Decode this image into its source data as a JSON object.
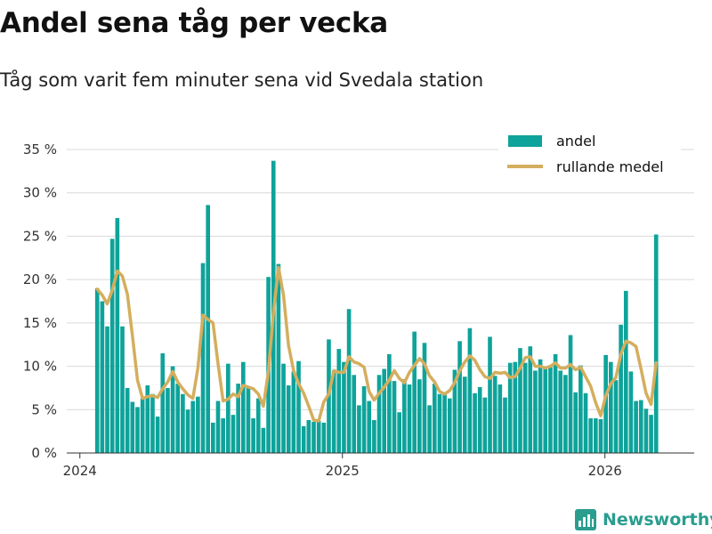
{
  "title": "Andel sena tåg per vecka",
  "subtitle": "Tåg som varit fem minuter sena vid Svedala station",
  "brand": "Newsworthy",
  "colors": {
    "bar": "#0ea39a",
    "line": "#d4ae5e",
    "grid": "#d9d9d9",
    "brand": "#2a9d8f"
  },
  "chart_data": {
    "type": "bar",
    "title": "Andel sena tåg per vecka",
    "subtitle": "Tåg som varit fem minuter sena vid Svedala station",
    "xlabel": "",
    "ylabel": "",
    "ylim": [
      0,
      35
    ],
    "y_ticks": [
      0,
      5,
      10,
      15,
      20,
      25,
      30,
      35
    ],
    "y_tick_labels": [
      "0 %",
      "5 %",
      "10 %",
      "15 %",
      "20 %",
      "25 %",
      "30 %",
      "35 %"
    ],
    "x_ticks": [
      2024,
      2025,
      2026
    ],
    "x_tick_labels": [
      "2024",
      "2025",
      "2026"
    ],
    "x_range": [
      2023.95,
      2026.34
    ],
    "start": 2024.066,
    "step": 0.01918,
    "grid": true,
    "legend_position": "top-right",
    "series": [
      {
        "name": "andel",
        "type": "bar",
        "values": [
          19.0,
          17.5,
          14.6,
          24.7,
          27.1,
          14.6,
          7.5,
          5.9,
          5.3,
          6.3,
          7.8,
          6.8,
          4.2,
          11.5,
          7.5,
          10.0,
          8.0,
          6.8,
          5.0,
          6.0,
          6.5,
          21.9,
          28.6,
          3.5,
          6.0,
          4.0,
          10.3,
          4.4,
          8.0,
          10.5,
          7.5,
          4.0,
          6.3,
          2.9,
          20.3,
          33.7,
          21.8,
          10.3,
          7.8,
          9.4,
          10.6,
          3.1,
          3.8,
          3.6,
          3.7,
          3.5,
          13.1,
          9.5,
          12.0,
          10.5,
          16.6,
          9.0,
          5.5,
          7.7,
          6.0,
          3.8,
          9.0,
          9.7,
          11.4,
          8.3,
          4.7,
          8.5,
          7.9,
          14.0,
          8.5,
          12.7,
          5.5,
          8.0,
          6.8,
          6.8,
          6.3,
          9.6,
          12.9,
          8.8,
          14.4,
          6.9,
          7.6,
          6.4,
          13.4,
          8.9,
          7.9,
          6.4,
          10.4,
          10.5,
          12.1,
          10.4,
          12.3,
          9.5,
          10.8,
          10.0,
          9.9,
          11.4,
          9.5,
          9.0,
          13.6,
          7.0,
          10.1,
          6.9,
          4.0,
          4.0,
          3.9,
          11.3,
          10.5,
          8.4,
          14.8,
          18.7,
          9.4,
          6.0,
          6.1,
          5.1,
          4.4,
          25.2
        ]
      },
      {
        "name": "rullande medel",
        "type": "line",
        "values": [
          18.9,
          18.2,
          17.2,
          18.8,
          21.0,
          20.4,
          18.3,
          13.5,
          8.4,
          6.3,
          6.5,
          6.6,
          6.4,
          7.4,
          8.2,
          9.4,
          8.2,
          7.4,
          6.7,
          6.3,
          9.8,
          15.9,
          15.4,
          15.0,
          10.3,
          6.0,
          6.2,
          6.8,
          6.5,
          7.8,
          7.6,
          7.4,
          6.8,
          5.4,
          9.4,
          16.2,
          21.4,
          18.2,
          12.4,
          9.5,
          8.0,
          6.9,
          5.4,
          3.8,
          3.7,
          5.9,
          6.8,
          9.5,
          9.3,
          9.3,
          11.1,
          10.5,
          10.3,
          9.9,
          7.1,
          6.1,
          6.9,
          7.6,
          8.4,
          9.5,
          8.6,
          8.1,
          9.3,
          10.1,
          10.9,
          10.3,
          8.9,
          8.2,
          7.1,
          6.8,
          7.2,
          8.1,
          9.5,
          10.5,
          11.2,
          10.7,
          9.6,
          8.8,
          8.6,
          9.3,
          9.2,
          9.3,
          8.7,
          8.8,
          9.8,
          11.0,
          11.1,
          10.0,
          10.0,
          9.8,
          10.0,
          10.4,
          9.8,
          9.8,
          10.2,
          9.6,
          9.9,
          8.8,
          7.7,
          5.8,
          4.3,
          6.6,
          8.0,
          8.7,
          11.4,
          12.9,
          12.7,
          12.3,
          9.7,
          6.9,
          5.6,
          10.4
        ]
      }
    ]
  }
}
